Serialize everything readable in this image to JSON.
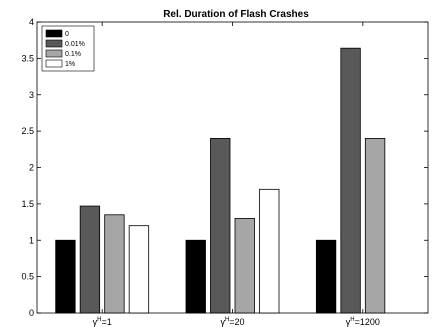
{
  "chart_data": {
    "type": "bar",
    "title": "Rel. Duration of Flash Crashes",
    "xlabel": "",
    "ylabel": "",
    "ylim": [
      0,
      4
    ],
    "yticks": [
      0,
      0.5,
      1,
      1.5,
      2,
      2.5,
      3,
      3.5,
      4
    ],
    "categories": [
      {
        "base": "γ",
        "sup": "H",
        "rest": "=1"
      },
      {
        "base": "γ",
        "sup": "H",
        "rest": "=20"
      },
      {
        "base": "γ",
        "sup": "H",
        "rest": "=1200"
      }
    ],
    "series": [
      {
        "name": "0",
        "color": "#000000",
        "values": [
          1.0,
          1.0,
          1.0
        ]
      },
      {
        "name": "0.01%",
        "color": "#595959",
        "values": [
          1.47,
          2.4,
          3.64
        ]
      },
      {
        "name": "0.1%",
        "color": "#a6a6a6",
        "values": [
          1.35,
          1.3,
          2.4
        ]
      },
      {
        "name": "1%",
        "color": "#ffffff",
        "values": [
          1.2,
          1.7,
          0
        ]
      }
    ],
    "grid": false,
    "legend": "top-left"
  }
}
